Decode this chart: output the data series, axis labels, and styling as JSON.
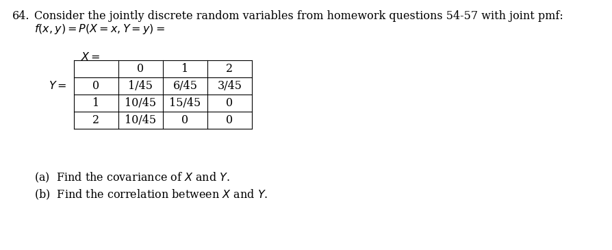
{
  "title_num": "64.",
  "title_text": "Consider the jointly discrete random variables from homework questions 54-57 with joint pmf:",
  "line2": "$f(x, y) = P(X = x, Y = y) =$",
  "x_label": "$X =$",
  "y_label": "$Y =$",
  "col_headers": [
    "0",
    "1",
    "2"
  ],
  "row_headers": [
    "0",
    "1",
    "2"
  ],
  "table_data": [
    [
      "1/45",
      "6/45",
      "3/45"
    ],
    [
      "10/45",
      "15/45",
      "0"
    ],
    [
      "10/45",
      "0",
      "0"
    ]
  ],
  "part_a": "(a)  Find the covariance of $X$ and $Y$.",
  "part_b": "(b)  Find the correlation between $X$ and $Y$.",
  "bg_color": "#ffffff",
  "text_color": "#000000",
  "font_size": 11.5
}
